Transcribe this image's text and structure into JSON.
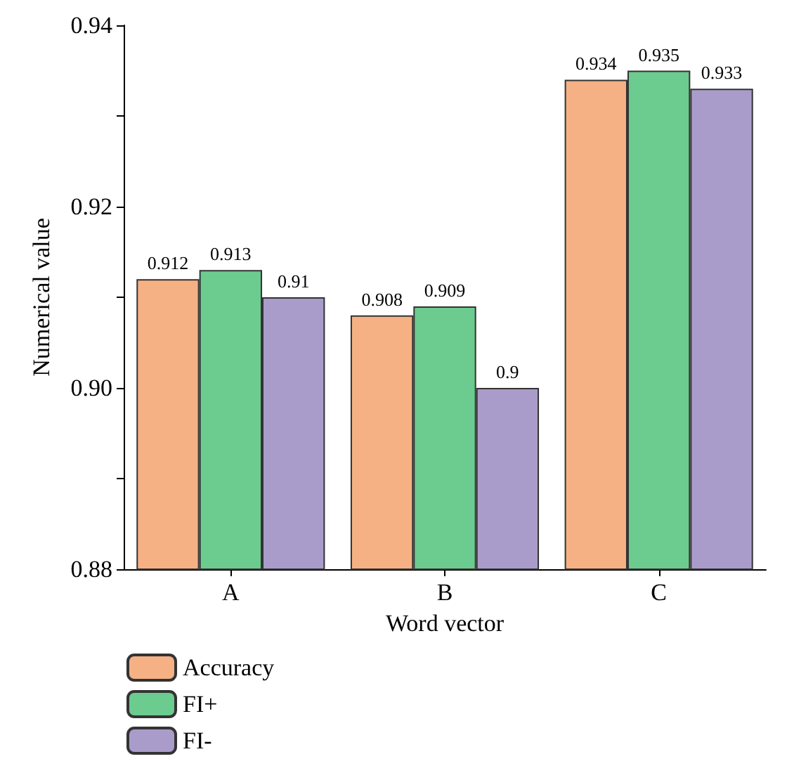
{
  "chart_data": {
    "type": "bar",
    "xlabel": "Word vector",
    "ylabel": "Numerical value",
    "categories": [
      "A",
      "B",
      "C"
    ],
    "series": [
      {
        "name": "Accuracy",
        "color": "#f5b184",
        "values": [
          0.912,
          0.908,
          0.934
        ]
      },
      {
        "name": "FI+",
        "color": "#6ccb8e",
        "values": [
          0.913,
          0.909,
          0.935
        ]
      },
      {
        "name": "FI-",
        "color": "#aa9cca",
        "values": [
          0.91,
          0.9,
          0.933
        ]
      }
    ],
    "ylim": [
      0.88,
      0.94
    ],
    "yticks": [
      0.88,
      {
        "value": 0.89,
        "label": null
      },
      {
        "value": 0.9,
        "label": "0.90"
      },
      {
        "value": 0.91,
        "label": null
      },
      {
        "value": 0.92,
        "label": "0.92"
      },
      {
        "value": 0.93,
        "label": null
      },
      0.94
    ],
    "data_labels": true,
    "grid": false,
    "legend": "bottom left"
  }
}
